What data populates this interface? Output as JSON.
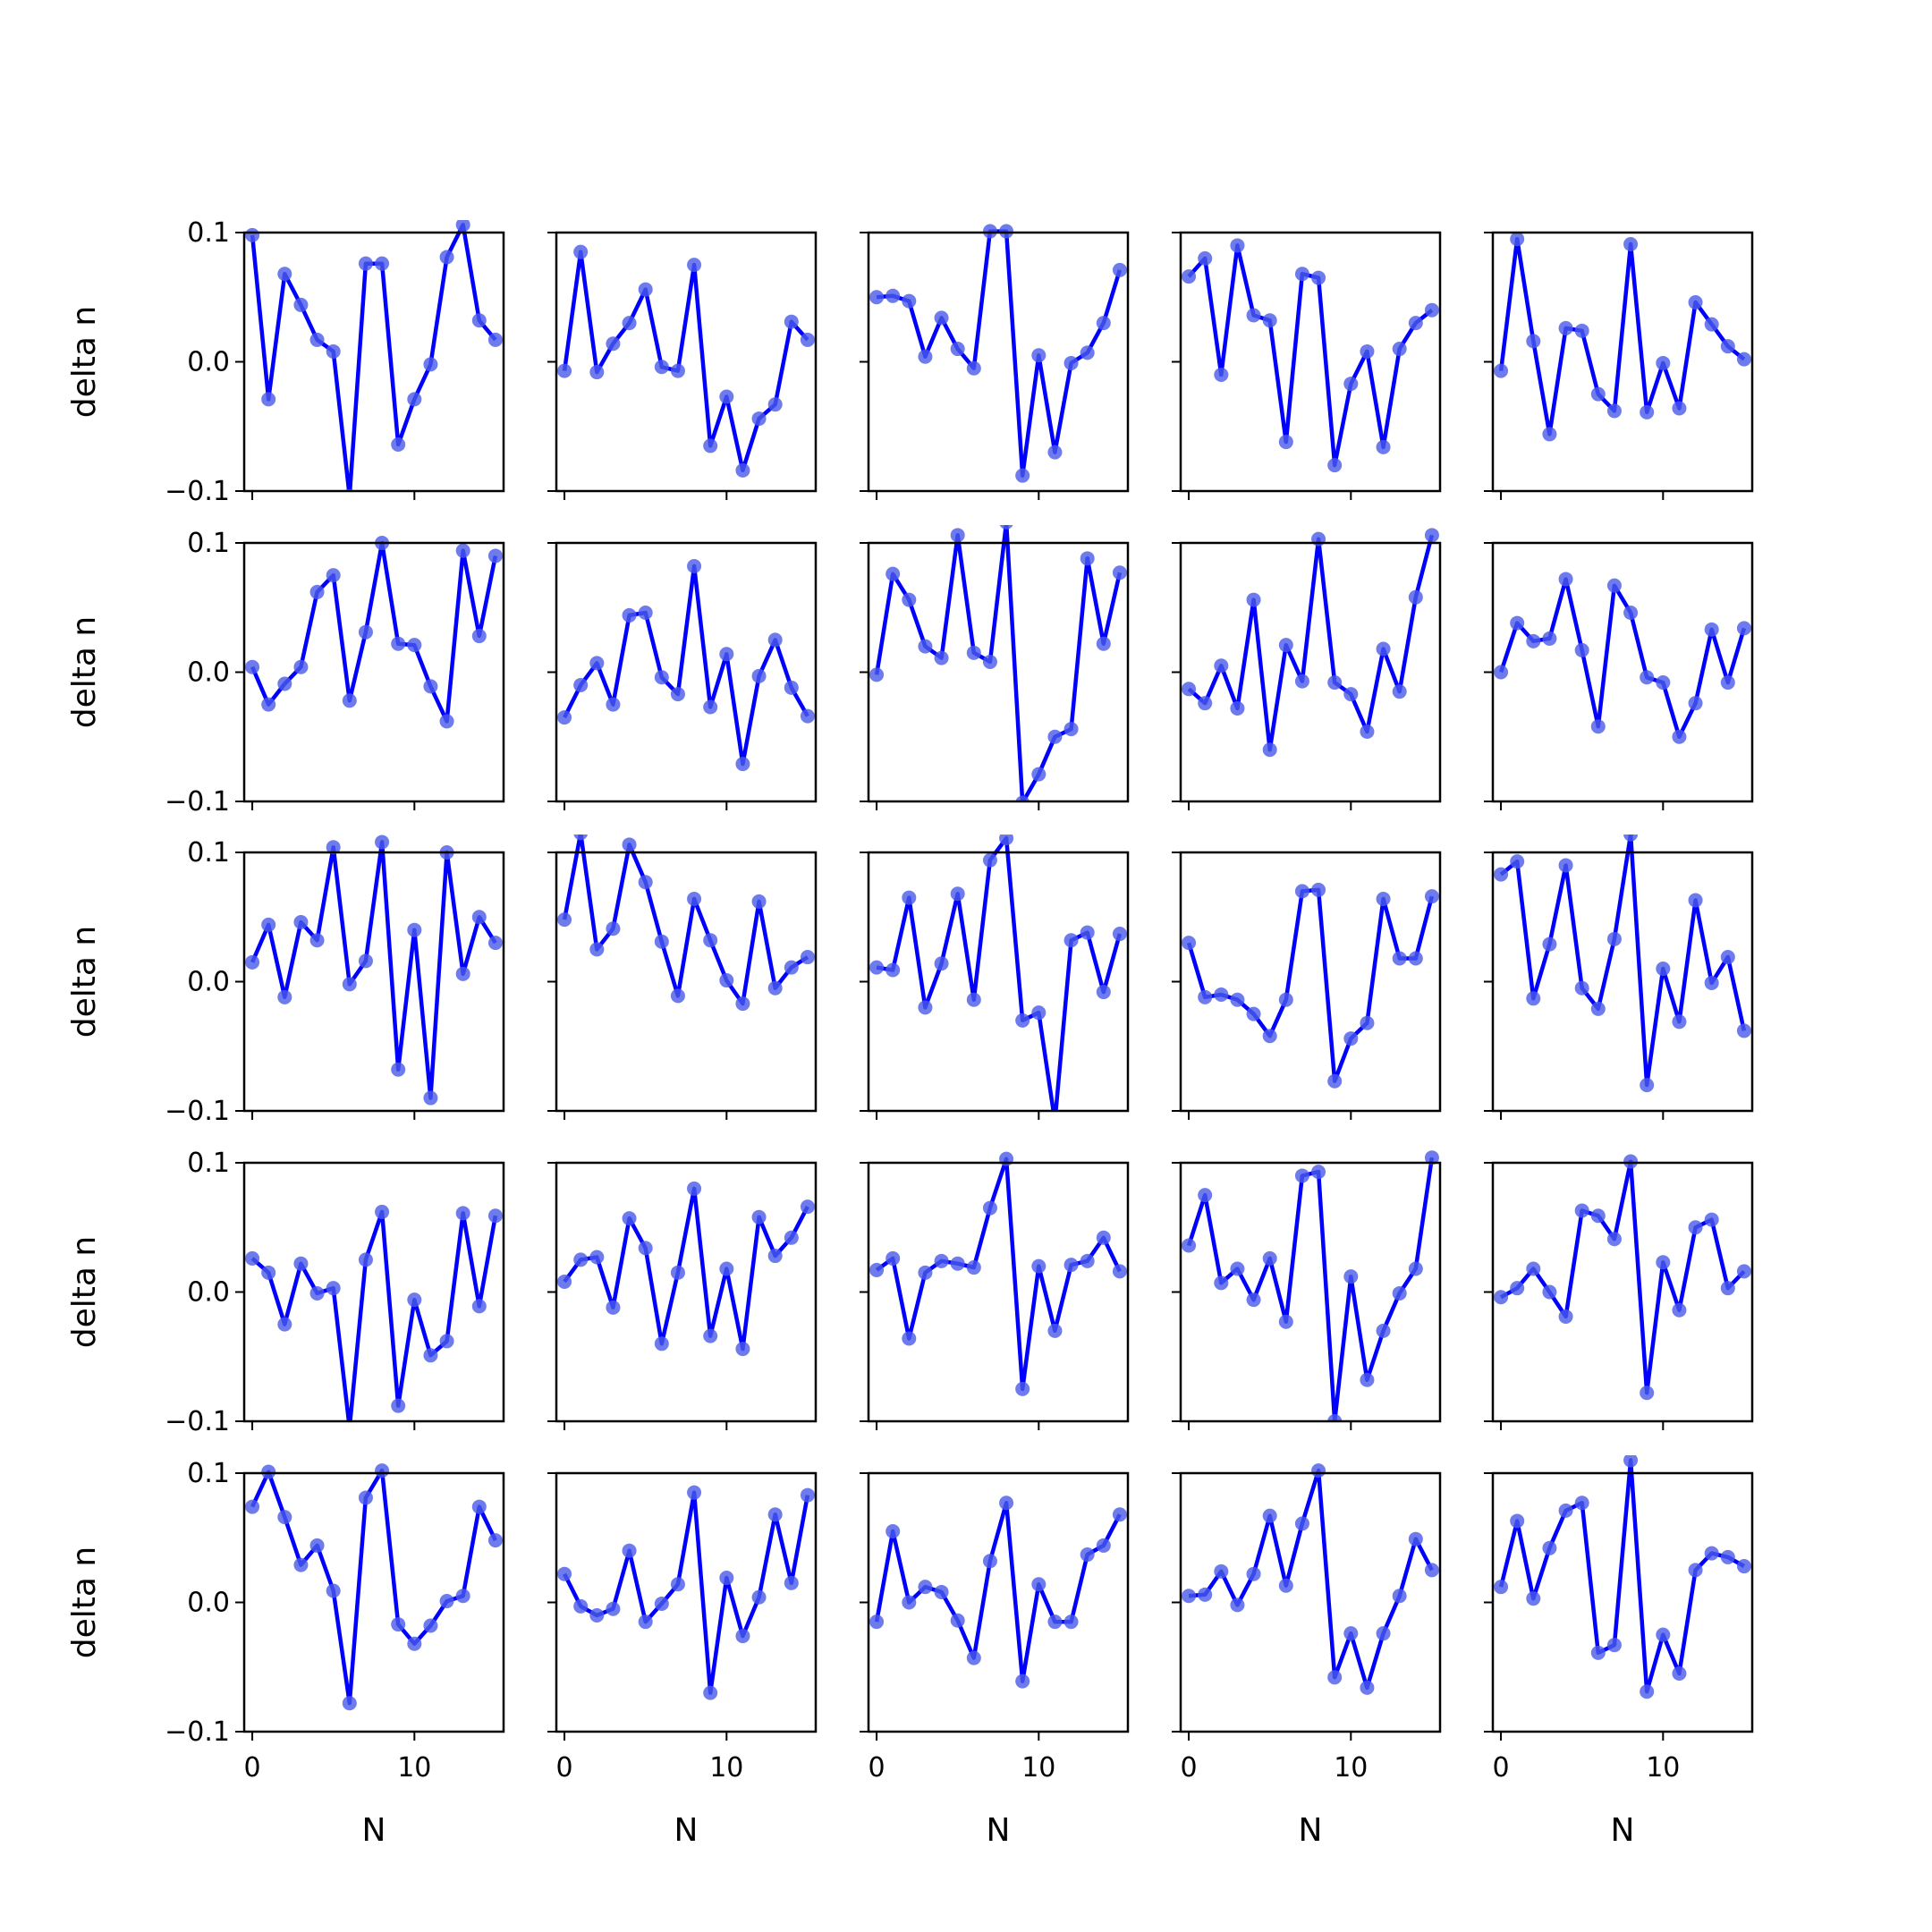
{
  "colors": {
    "line": "#0000ff",
    "marker": "#4a5ae8",
    "axes": "#000000"
  },
  "chart_data": {
    "type": "line",
    "layout": "5x5 grid of subplots",
    "shared_axes": true,
    "x": [
      0,
      1,
      2,
      3,
      4,
      5,
      6,
      7,
      8,
      9,
      10,
      11,
      12,
      13,
      14,
      15
    ],
    "xlim": [
      -0.5,
      15.5
    ],
    "ylim": [
      -0.1,
      0.1
    ],
    "xticks": [
      0,
      10
    ],
    "xtick_labels": [
      "0",
      "10"
    ],
    "yticks": [
      -0.1,
      0.0,
      0.1
    ],
    "ytick_labels": [
      "−0.1",
      "0.0",
      "0.1"
    ],
    "xlabel": "N",
    "ylabel": "delta n",
    "grid": false,
    "legend": false,
    "markers": true,
    "panels": [
      {
        "row": 1,
        "col": 1,
        "values": [
          0.098,
          -0.029,
          0.068,
          0.044,
          0.017,
          0.008,
          -0.104,
          0.076,
          0.076,
          -0.064,
          -0.029,
          -0.002,
          0.081,
          0.106,
          0.032,
          0.017
        ]
      },
      {
        "row": 1,
        "col": 2,
        "values": [
          -0.007,
          0.085,
          -0.008,
          0.014,
          0.03,
          0.056,
          -0.004,
          -0.007,
          0.075,
          -0.065,
          -0.027,
          -0.084,
          -0.044,
          -0.033,
          0.031,
          0.017
        ]
      },
      {
        "row": 1,
        "col": 3,
        "values": [
          0.05,
          0.051,
          0.047,
          0.004,
          0.034,
          0.01,
          -0.005,
          0.101,
          0.101,
          -0.088,
          0.005,
          -0.07,
          -0.001,
          0.007,
          0.03,
          0.071
        ]
      },
      {
        "row": 1,
        "col": 4,
        "values": [
          0.066,
          0.08,
          -0.01,
          0.09,
          0.036,
          0.032,
          -0.062,
          0.068,
          0.065,
          -0.08,
          -0.017,
          0.008,
          -0.066,
          0.01,
          0.03,
          0.04
        ]
      },
      {
        "row": 1,
        "col": 5,
        "values": [
          -0.007,
          0.095,
          0.016,
          -0.056,
          0.026,
          0.024,
          -0.025,
          -0.038,
          0.091,
          -0.039,
          -0.001,
          -0.036,
          0.046,
          0.029,
          0.012,
          0.002
        ]
      },
      {
        "row": 2,
        "col": 1,
        "values": [
          0.004,
          -0.025,
          -0.009,
          0.004,
          0.062,
          0.075,
          -0.022,
          0.031,
          0.1,
          0.022,
          0.021,
          -0.011,
          -0.038,
          0.094,
          0.028,
          0.09
        ]
      },
      {
        "row": 2,
        "col": 2,
        "values": [
          -0.035,
          -0.01,
          0.007,
          -0.025,
          0.044,
          0.046,
          -0.004,
          -0.017,
          0.082,
          -0.027,
          0.014,
          -0.071,
          -0.003,
          0.025,
          -0.012,
          -0.034
        ]
      },
      {
        "row": 2,
        "col": 3,
        "values": [
          -0.002,
          0.076,
          0.056,
          0.02,
          0.011,
          0.106,
          0.015,
          0.008,
          0.116,
          -0.101,
          -0.079,
          -0.05,
          -0.044,
          0.088,
          0.022,
          0.077
        ]
      },
      {
        "row": 2,
        "col": 4,
        "values": [
          -0.013,
          -0.024,
          0.005,
          -0.028,
          0.056,
          -0.06,
          0.021,
          -0.007,
          0.103,
          -0.008,
          -0.017,
          -0.046,
          0.018,
          -0.015,
          0.058,
          0.106
        ]
      },
      {
        "row": 2,
        "col": 5,
        "values": [
          0.0,
          0.038,
          0.024,
          0.026,
          0.072,
          0.017,
          -0.042,
          0.067,
          0.046,
          -0.004,
          -0.008,
          -0.05,
          -0.024,
          0.033,
          -0.008,
          0.034
        ]
      },
      {
        "row": 3,
        "col": 1,
        "values": [
          0.015,
          0.044,
          -0.012,
          0.046,
          0.032,
          0.104,
          -0.002,
          0.016,
          0.108,
          -0.068,
          0.04,
          -0.09,
          0.1,
          0.006,
          0.05,
          0.03
        ]
      },
      {
        "row": 3,
        "col": 2,
        "values": [
          0.048,
          0.115,
          0.025,
          0.041,
          0.106,
          0.077,
          0.031,
          -0.011,
          0.064,
          0.032,
          0.001,
          -0.017,
          0.062,
          -0.005,
          0.011,
          0.019
        ]
      },
      {
        "row": 3,
        "col": 3,
        "values": [
          0.011,
          0.009,
          0.065,
          -0.02,
          0.014,
          0.068,
          -0.014,
          0.094,
          0.111,
          -0.03,
          -0.024,
          -0.108,
          0.032,
          0.038,
          -0.008,
          0.037
        ]
      },
      {
        "row": 3,
        "col": 4,
        "values": [
          0.03,
          -0.012,
          -0.01,
          -0.014,
          -0.025,
          -0.042,
          -0.014,
          0.07,
          0.071,
          -0.077,
          -0.044,
          -0.032,
          0.064,
          0.018,
          0.018,
          0.066
        ]
      },
      {
        "row": 3,
        "col": 5,
        "values": [
          0.083,
          0.093,
          -0.013,
          0.029,
          0.09,
          -0.005,
          -0.021,
          0.033,
          0.114,
          -0.08,
          0.01,
          -0.031,
          0.063,
          -0.001,
          0.019,
          -0.038
        ]
      },
      {
        "row": 4,
        "col": 1,
        "values": [
          0.026,
          0.015,
          -0.025,
          0.022,
          -0.001,
          0.003,
          -0.105,
          0.025,
          0.062,
          -0.088,
          -0.006,
          -0.049,
          -0.038,
          0.061,
          -0.011,
          0.059
        ]
      },
      {
        "row": 4,
        "col": 2,
        "values": [
          0.008,
          0.025,
          0.027,
          -0.012,
          0.057,
          0.034,
          -0.04,
          0.015,
          0.08,
          -0.034,
          0.018,
          -0.044,
          0.058,
          0.028,
          0.042,
          0.066
        ]
      },
      {
        "row": 4,
        "col": 3,
        "values": [
          0.017,
          0.026,
          -0.036,
          0.015,
          0.024,
          0.022,
          0.019,
          0.065,
          0.103,
          -0.075,
          0.02,
          -0.03,
          0.021,
          0.024,
          0.042,
          0.016
        ]
      },
      {
        "row": 4,
        "col": 4,
        "values": [
          0.036,
          0.075,
          0.007,
          0.018,
          -0.006,
          0.026,
          -0.023,
          0.09,
          0.093,
          -0.1,
          0.012,
          -0.068,
          -0.03,
          -0.001,
          0.018,
          0.104
        ]
      },
      {
        "row": 4,
        "col": 5,
        "values": [
          -0.004,
          0.003,
          0.018,
          0.0,
          -0.019,
          0.063,
          0.059,
          0.041,
          0.101,
          -0.078,
          0.023,
          -0.014,
          0.05,
          0.056,
          0.003,
          0.016
        ]
      },
      {
        "row": 5,
        "col": 1,
        "values": [
          0.074,
          0.101,
          0.066,
          0.029,
          0.044,
          0.009,
          -0.078,
          0.081,
          0.102,
          -0.017,
          -0.032,
          -0.018,
          0.001,
          0.005,
          0.074,
          0.048
        ]
      },
      {
        "row": 5,
        "col": 2,
        "values": [
          0.022,
          -0.003,
          -0.01,
          -0.005,
          0.04,
          -0.015,
          -0.001,
          0.014,
          0.085,
          -0.07,
          0.019,
          -0.026,
          0.004,
          0.068,
          0.015,
          0.083
        ]
      },
      {
        "row": 5,
        "col": 3,
        "values": [
          -0.015,
          0.055,
          0.0,
          0.012,
          0.008,
          -0.014,
          -0.043,
          0.032,
          0.077,
          -0.061,
          0.014,
          -0.015,
          -0.015,
          0.037,
          0.044,
          0.068
        ]
      },
      {
        "row": 5,
        "col": 4,
        "values": [
          0.005,
          0.006,
          0.024,
          -0.002,
          0.022,
          0.067,
          0.013,
          0.061,
          0.102,
          -0.058,
          -0.024,
          -0.066,
          -0.024,
          0.005,
          0.049,
          0.025
        ]
      },
      {
        "row": 5,
        "col": 5,
        "values": [
          0.012,
          0.063,
          0.003,
          0.042,
          0.071,
          0.077,
          -0.039,
          -0.033,
          0.11,
          -0.069,
          -0.025,
          -0.055,
          0.025,
          0.038,
          0.035,
          0.028
        ]
      }
    ]
  }
}
